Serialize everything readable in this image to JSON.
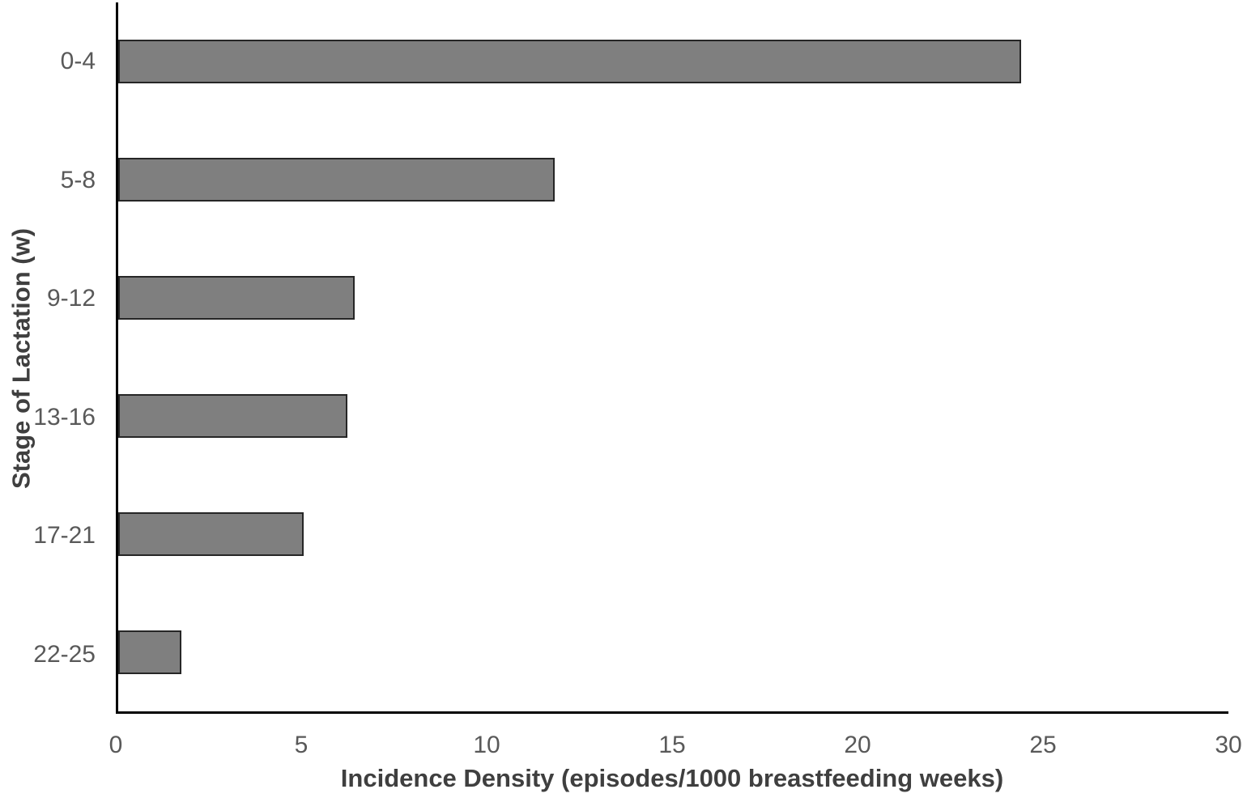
{
  "chart_data": {
    "type": "bar",
    "orientation": "horizontal",
    "title": "",
    "xlabel": "Incidence Density (episodes/1000 breastfeeding weeks)",
    "ylabel": "Stage of Lactation (w)",
    "categories": [
      "0-4",
      "5-8",
      "9-12",
      "13-16",
      "17-21",
      "22-25"
    ],
    "values": [
      24.4,
      11.8,
      6.4,
      6.2,
      5.0,
      1.7
    ],
    "xlim": [
      0,
      30
    ],
    "xticks": [
      0,
      5,
      10,
      15,
      20,
      25,
      30
    ],
    "grid": false,
    "legend": "none",
    "bar_fill_color": "#7f7f7f",
    "bar_border_color": "#262626",
    "axis_line_color": "#000000",
    "tick_label_color": "#595959",
    "axis_title_color": "#3f3f3f"
  }
}
